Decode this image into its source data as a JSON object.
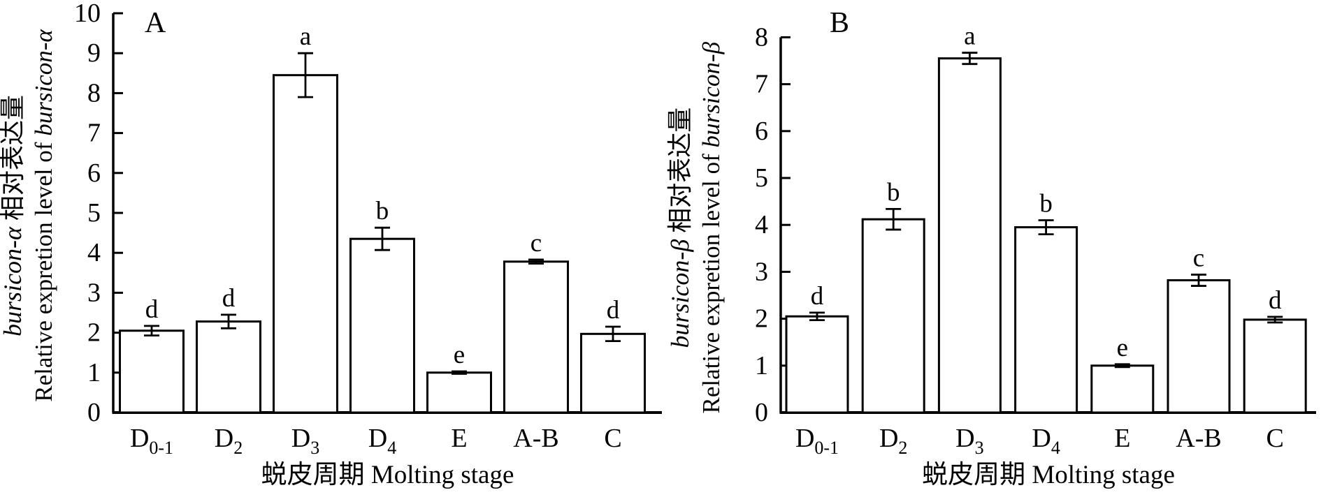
{
  "figure": {
    "background": "#ffffff",
    "ink_color": "#000000",
    "bar_fill": "#ffffff"
  },
  "chart_data": [
    {
      "type": "bar",
      "panel_label": "A",
      "categories": [
        {
          "base": "D",
          "sub": "0-1"
        },
        {
          "base": "D",
          "sub": "2"
        },
        {
          "base": "D",
          "sub": "3"
        },
        {
          "base": "D",
          "sub": "4"
        },
        {
          "base": "E",
          "sub": ""
        },
        {
          "base": "A-B",
          "sub": ""
        },
        {
          "base": "C",
          "sub": ""
        }
      ],
      "values": [
        2.05,
        2.28,
        8.45,
        4.35,
        1.0,
        3.78,
        1.97
      ],
      "errors": [
        0.12,
        0.17,
        0.55,
        0.28,
        0.03,
        0.05,
        0.18
      ],
      "sig_letters": [
        "d",
        "d",
        "a",
        "b",
        "e",
        "c",
        "d"
      ],
      "ylabel_cn_gene": "bursicon-α",
      "ylabel_cn_text": " 相对表达量",
      "ylabel_en_prefix": "Relative expretion level of ",
      "ylabel_en_gene": "bursicon-α",
      "xlabel": "蜕皮周期 Molting stage",
      "ylim": [
        0,
        10
      ],
      "ytick_step": 1,
      "grid": false,
      "legend": "none"
    },
    {
      "type": "bar",
      "panel_label": "B",
      "categories": [
        {
          "base": "D",
          "sub": "0-1"
        },
        {
          "base": "D",
          "sub": "2"
        },
        {
          "base": "D",
          "sub": "3"
        },
        {
          "base": "D",
          "sub": "4"
        },
        {
          "base": "E",
          "sub": ""
        },
        {
          "base": "A-B",
          "sub": ""
        },
        {
          "base": "C",
          "sub": ""
        }
      ],
      "values": [
        2.05,
        4.12,
        7.55,
        3.95,
        1.0,
        2.82,
        1.98
      ],
      "errors": [
        0.08,
        0.22,
        0.12,
        0.15,
        0.03,
        0.12,
        0.06
      ],
      "sig_letters": [
        "d",
        "b",
        "a",
        "b",
        "e",
        "c",
        "d"
      ],
      "ylabel_cn_gene": "bursicon-β",
      "ylabel_cn_text": " 相对表达量",
      "ylabel_en_prefix": "Relative expretion level of ",
      "ylabel_en_gene": "bursicon-β",
      "xlabel": "蜕皮周期 Molting stage",
      "ylim": [
        0,
        8
      ],
      "ytick_step": 1,
      "grid": false,
      "legend": "none"
    }
  ]
}
